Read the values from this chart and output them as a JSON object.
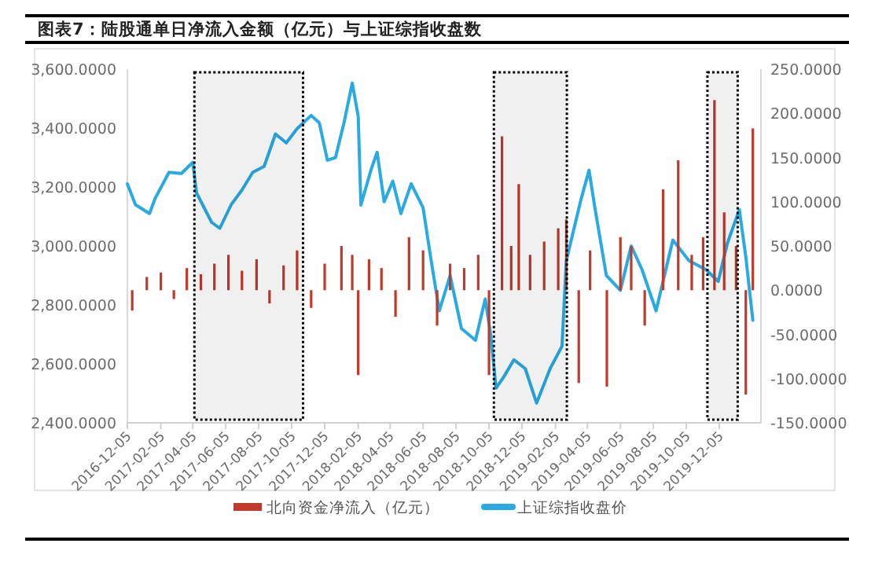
{
  "chart_data": {
    "type": "bar",
    "title": "图表7：陆股通单日净流入金额（亿元）与上证综指收盘数",
    "legend": "bottom",
    "xlim": [
      "2016-12-05",
      "2020-02-20"
    ],
    "xticks": [
      "2016-12-05",
      "2017-02-05",
      "2017-04-05",
      "2017-06-05",
      "2017-08-05",
      "2017-10-05",
      "2017-12-05",
      "2018-02-05",
      "2018-04-05",
      "2018-06-05",
      "2018-08-05",
      "2018-10-05",
      "2018-12-05",
      "2019-02-05",
      "2019-04-05",
      "2019-06-05",
      "2019-08-05",
      "2019-10-05",
      "2019-12-05"
    ],
    "ylim": [
      2400,
      3600
    ],
    "yticks": [
      {
        "value": 2400,
        "label": "2,400.0000"
      },
      {
        "value": 2600,
        "label": "2,600.0000"
      },
      {
        "value": 2800,
        "label": "2,800.0000"
      },
      {
        "value": 3000,
        "label": "3,000.0000"
      },
      {
        "value": 3200,
        "label": "3,200.0000"
      },
      {
        "value": 3400,
        "label": "3,400.0000"
      },
      {
        "value": 3600,
        "label": "3,600.0000"
      }
    ],
    "y2lim": [
      -150,
      250
    ],
    "y2ticks": [
      {
        "value": -150,
        "label": "-150.0000"
      },
      {
        "value": -100,
        "label": "-100.0000"
      },
      {
        "value": -50,
        "label": "-50.0000"
      },
      {
        "value": 0,
        "label": "0.0000"
      },
      {
        "value": 50,
        "label": "50.0000"
      },
      {
        "value": 100,
        "label": "100.0000"
      },
      {
        "value": 150,
        "label": "150.0000"
      },
      {
        "value": 200,
        "label": "200.0000"
      },
      {
        "value": 250,
        "label": "250.0000"
      }
    ],
    "bands": [
      {
        "axis": "x",
        "from": "2017-04-08",
        "to": "2017-10-26",
        "color": "#000000"
      },
      {
        "axis": "x",
        "from": "2018-10-14",
        "to": "2019-02-26",
        "color": "#000000"
      },
      {
        "axis": "x",
        "from": "2019-11-13",
        "to": "2020-01-08",
        "color": "#000000"
      }
    ],
    "series": [
      {
        "name": "北向资金净流入（亿元）",
        "axis": "y2",
        "color": "#c0392b",
        "x": [
          "2016-12-14",
          "2017-01-10",
          "2017-02-05",
          "2017-03-01",
          "2017-03-25",
          "2017-04-20",
          "2017-05-15",
          "2017-06-10",
          "2017-07-05",
          "2017-08-01",
          "2017-08-25",
          "2017-09-20",
          "2017-10-15",
          "2017-11-10",
          "2017-12-05",
          "2018-01-05",
          "2018-01-25",
          "2018-02-05",
          "2018-02-25",
          "2018-03-20",
          "2018-04-15",
          "2018-05-10",
          "2018-06-05",
          "2018-07-01",
          "2018-07-25",
          "2018-08-20",
          "2018-09-15",
          "2018-10-05",
          "2018-10-29",
          "2018-11-15",
          "2018-11-29",
          "2018-12-20",
          "2019-01-15",
          "2019-02-10",
          "2019-02-25",
          "2019-03-20",
          "2019-04-10",
          "2019-05-11",
          "2019-06-05",
          "2019-06-25",
          "2019-07-20",
          "2019-08-23",
          "2019-09-20",
          "2019-10-15",
          "2019-11-05",
          "2019-11-26",
          "2019-12-14",
          "2020-01-05",
          "2020-01-23",
          "2020-02-05"
        ],
        "values": [
          -23,
          15,
          20,
          -10,
          25,
          18,
          30,
          40,
          22,
          35,
          -15,
          28,
          45,
          -20,
          30,
          50,
          40,
          -96,
          35,
          25,
          -30,
          60,
          45,
          -40,
          30,
          25,
          40,
          -96,
          174,
          50,
          120,
          40,
          55,
          70,
          80,
          -105,
          45,
          -109,
          60,
          50,
          -40,
          114,
          147,
          40,
          60,
          215,
          88,
          50,
          -118,
          183
        ]
      },
      {
        "name": "上证综指收盘价",
        "type": "line",
        "color": "#29abe2",
        "x": [
          "2016-12-05",
          "2016-12-20",
          "2017-01-15",
          "2017-01-25",
          "2017-02-20",
          "2017-03-15",
          "2017-04-05",
          "2017-04-12",
          "2017-05-10",
          "2017-05-25",
          "2017-06-15",
          "2017-07-05",
          "2017-07-25",
          "2017-08-15",
          "2017-09-05",
          "2017-09-25",
          "2017-10-15",
          "2017-11-10",
          "2017-11-25",
          "2017-12-10",
          "2017-12-25",
          "2018-01-10",
          "2018-01-25",
          "2018-02-05",
          "2018-02-10",
          "2018-03-01",
          "2018-03-12",
          "2018-03-25",
          "2018-04-10",
          "2018-04-25",
          "2018-05-14",
          "2018-06-05",
          "2018-06-20",
          "2018-07-05",
          "2018-07-25",
          "2018-08-15",
          "2018-09-10",
          "2018-09-28",
          "2018-10-08",
          "2018-10-18",
          "2018-11-01",
          "2018-11-20",
          "2018-12-11",
          "2019-01-01",
          "2019-01-26",
          "2019-02-17",
          "2019-02-25",
          "2019-03-10",
          "2019-03-24",
          "2019-04-08",
          "2019-04-18",
          "2019-05-10",
          "2019-06-05",
          "2019-06-25",
          "2019-07-15",
          "2019-08-10",
          "2019-09-10",
          "2019-10-10",
          "2019-11-10",
          "2019-12-03",
          "2019-12-20",
          "2020-01-11",
          "2020-01-23",
          "2020-02-05"
        ],
        "values": [
          3211,
          3140,
          3110,
          3160,
          3250,
          3246,
          3284,
          3180,
          3080,
          3060,
          3140,
          3190,
          3250,
          3270,
          3380,
          3350,
          3398,
          3443,
          3418,
          3291,
          3300,
          3420,
          3553,
          3440,
          3139,
          3260,
          3318,
          3150,
          3220,
          3110,
          3211,
          3130,
          2950,
          2780,
          2900,
          2720,
          2680,
          2820,
          2700,
          2518,
          2555,
          2614,
          2584,
          2467,
          2584,
          2660,
          2950,
          3050,
          3157,
          3257,
          3139,
          2900,
          2850,
          3000,
          2920,
          2780,
          3020,
          2950,
          2920,
          2880,
          3010,
          3123,
          2963,
          2748
        ]
      }
    ]
  }
}
